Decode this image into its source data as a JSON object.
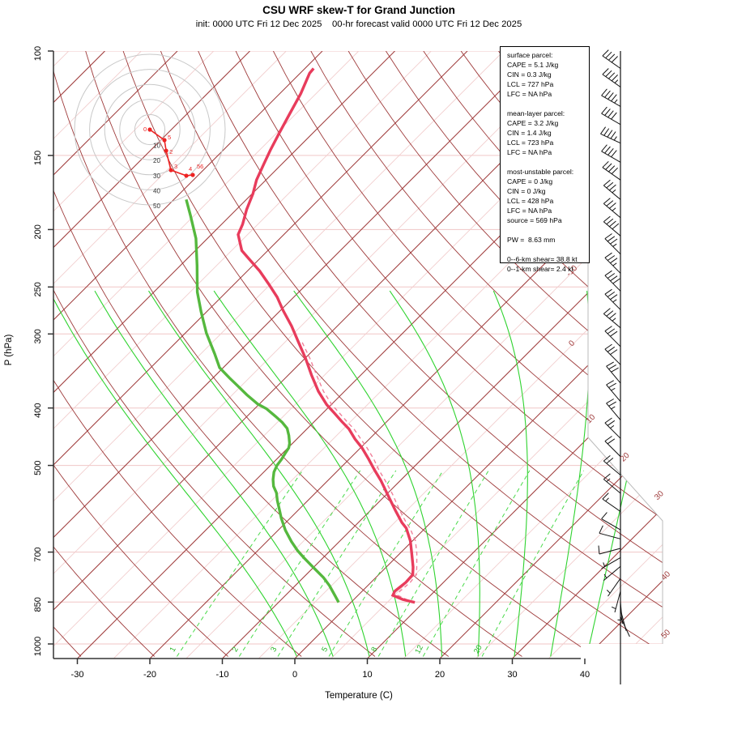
{
  "title": "CSU WRF skew-T for Grand Junction",
  "subtitle": "init: 0000 UTC Fri 12 Dec 2025    00-hr forecast valid 0000 UTC Fri 12 Dec 2025",
  "axes": {
    "xlabel": "Temperature (C)",
    "ylabel": "P (hPa)",
    "x_ticks": [
      -30,
      -20,
      -10,
      0,
      10,
      20,
      30,
      40
    ],
    "p_ticks": [
      100,
      150,
      200,
      250,
      300,
      400,
      500,
      700,
      850,
      1000
    ]
  },
  "info_box": {
    "lines": [
      "surface parcel:",
      "CAPE = 5.1 J/kg",
      "CIN = 0.3 J/kg",
      "LCL = 727 hPa",
      "LFC = NA hPa",
      "",
      "mean-layer parcel:",
      "CAPE = 3.2 J/kg",
      "CIN = 1.4 J/kg",
      "LCL = 723 hPa",
      "LFC = NA hPa",
      "",
      "most-unstable parcel:",
      "CAPE = 0 J/kg",
      "CIN = 0 J/kg",
      "LCL = 428 hPa",
      "LFC = NA hPa",
      "source = 569 hPa",
      "",
      "PW =  8.63 mm",
      "",
      "0--6-km shear= 38.8 kt",
      "0--1-km shear= 2.4 kt"
    ]
  },
  "chart_data": {
    "type": "line",
    "title": "CSU WRF skew-T for Grand Junction",
    "xlabel": "Temperature (C)",
    "ylabel": "P (hPa)",
    "x_range_C": [
      -30,
      45
    ],
    "p_range_hPa": [
      100,
      1050
    ],
    "grid": {
      "isobars_hPa": [
        100,
        150,
        200,
        250,
        300,
        400,
        500,
        700,
        850,
        1000
      ],
      "isotherms_C_major_step": 10,
      "isotherms_C_major": [
        -110,
        50
      ],
      "isotherms_C_minor_offset": 5,
      "isotherm_edge_labels_C": [
        -10,
        0,
        10,
        20,
        30,
        40,
        50
      ],
      "dry_adiabats_thetaK": [
        240,
        450,
        10
      ],
      "moist_adiabats_startC_at_1050": [
        0,
        5,
        10,
        15,
        20,
        25,
        30,
        35,
        40
      ],
      "moist_adiabat_top_hPa": 250,
      "mixing_ratio_g_per_kg": [
        1,
        2,
        3,
        5,
        8,
        12,
        20
      ],
      "mixing_ratio_top_hPa": 500
    },
    "temperature_profile_pT": [
      [
        107,
        -78.8
      ],
      [
        109,
        -78.7
      ],
      [
        118,
        -77.1
      ],
      [
        128,
        -75.8
      ],
      [
        137,
        -74.7
      ],
      [
        147,
        -73.5
      ],
      [
        155,
        -72.5
      ],
      [
        165,
        -71.3
      ],
      [
        174,
        -69.9
      ],
      [
        185,
        -68.6
      ],
      [
        196,
        -67.1
      ],
      [
        204,
        -66.3
      ],
      [
        217,
        -63.6
      ],
      [
        224,
        -61.5
      ],
      [
        235,
        -58.3
      ],
      [
        247,
        -55.3
      ],
      [
        260,
        -52.3
      ],
      [
        274,
        -49.6
      ],
      [
        291,
        -46.3
      ],
      [
        310,
        -43.1
      ],
      [
        330,
        -39.9
      ],
      [
        352,
        -36.8
      ],
      [
        375,
        -33.6
      ],
      [
        395,
        -30.6
      ],
      [
        408,
        -28.4
      ],
      [
        421,
        -26.3
      ],
      [
        434,
        -24.2
      ],
      [
        451,
        -22.0
      ],
      [
        467,
        -19.8
      ],
      [
        488,
        -17.3
      ],
      [
        509,
        -15.0
      ],
      [
        530,
        -12.7
      ],
      [
        559,
        -9.9
      ],
      [
        595,
        -6.6
      ],
      [
        624,
        -4.0
      ],
      [
        638,
        -2.6
      ],
      [
        670,
        -0.3
      ],
      [
        703,
        1.6
      ],
      [
        742,
        3.7
      ],
      [
        764,
        4.7
      ],
      [
        787,
        4.8
      ],
      [
        815,
        4.5
      ],
      [
        828,
        4.8
      ],
      [
        841,
        6.7
      ],
      [
        851,
        8.8
      ]
    ],
    "dewpoint_profile_pT": [
      [
        178,
        -78.3
      ],
      [
        189,
        -75.6
      ],
      [
        207,
        -71.6
      ],
      [
        230,
        -67.7
      ],
      [
        255,
        -64.0
      ],
      [
        275,
        -60.8
      ],
      [
        299,
        -57.1
      ],
      [
        324,
        -53.1
      ],
      [
        342,
        -50.5
      ],
      [
        356,
        -47.7
      ],
      [
        367,
        -45.5
      ],
      [
        380,
        -43.0
      ],
      [
        394,
        -40.2
      ],
      [
        401,
        -38.4
      ],
      [
        413,
        -36.1
      ],
      [
        423,
        -34.3
      ],
      [
        433,
        -32.8
      ],
      [
        445,
        -31.6
      ],
      [
        459,
        -30.4
      ],
      [
        467,
        -29.9
      ],
      [
        478,
        -29.6
      ],
      [
        489,
        -29.3
      ],
      [
        500,
        -29.1
      ],
      [
        513,
        -28.6
      ],
      [
        528,
        -27.7
      ],
      [
        542,
        -26.7
      ],
      [
        556,
        -25.4
      ],
      [
        573,
        -24.2
      ],
      [
        589,
        -23.0
      ],
      [
        614,
        -21.2
      ],
      [
        643,
        -19.0
      ],
      [
        672,
        -16.6
      ],
      [
        696,
        -14.5
      ],
      [
        716,
        -12.6
      ],
      [
        741,
        -10.2
      ],
      [
        773,
        -7.2
      ],
      [
        797,
        -5.3
      ],
      [
        828,
        -3.2
      ],
      [
        851,
        -1.7
      ]
    ],
    "parcel_trace_pT": [
      [
        851,
        8.8
      ],
      [
        841,
        7.2
      ],
      [
        828,
        5.5
      ],
      [
        815,
        5.2
      ],
      [
        787,
        5.4
      ],
      [
        764,
        5.2
      ],
      [
        742,
        4.2
      ],
      [
        703,
        2.3
      ],
      [
        670,
        0.4
      ],
      [
        638,
        -2.1
      ],
      [
        624,
        -3.4
      ],
      [
        595,
        -6.0
      ],
      [
        559,
        -9.2
      ],
      [
        530,
        -12.1
      ],
      [
        509,
        -14.4
      ],
      [
        488,
        -16.6
      ],
      [
        467,
        -19.1
      ],
      [
        451,
        -21.2
      ],
      [
        434,
        -23.5
      ],
      [
        421,
        -25.6
      ],
      [
        408,
        -27.7
      ],
      [
        395,
        -29.9
      ],
      [
        375,
        -32.9
      ],
      [
        352,
        -36.1
      ],
      [
        330,
        -39.3
      ],
      [
        310,
        -42.6
      ]
    ],
    "hodograph": {
      "ring_labels_kt": [
        10,
        20,
        30,
        40,
        50
      ],
      "trace_uv_kt": [
        [
          0,
          0
        ],
        [
          9.7,
          -7.0
        ],
        [
          10.8,
          -14.0
        ],
        [
          14.0,
          -26.9
        ],
        [
          24.2,
          -30.6
        ],
        [
          28.5,
          -30.1
        ]
      ],
      "point_labels": [
        "0",
        "5",
        "2",
        "3",
        "4",
        "56"
      ]
    },
    "wind_barbs_p_spd_dir": [
      [
        107,
        40,
        305
      ],
      [
        115,
        45,
        305
      ],
      [
        124,
        45,
        300
      ],
      [
        133,
        40,
        300
      ],
      [
        143,
        45,
        295
      ],
      [
        154,
        40,
        300
      ],
      [
        165,
        40,
        305
      ],
      [
        178,
        35,
        310
      ],
      [
        191,
        35,
        310
      ],
      [
        205,
        40,
        310
      ],
      [
        220,
        35,
        315
      ],
      [
        237,
        35,
        315
      ],
      [
        254,
        40,
        315
      ],
      [
        273,
        35,
        315
      ],
      [
        293,
        35,
        310
      ],
      [
        315,
        30,
        315
      ],
      [
        338,
        30,
        315
      ],
      [
        363,
        30,
        320
      ],
      [
        390,
        25,
        320
      ],
      [
        419,
        25,
        320
      ],
      [
        450,
        25,
        315
      ],
      [
        483,
        20,
        315
      ],
      [
        519,
        20,
        310
      ],
      [
        557,
        15,
        310
      ],
      [
        598,
        15,
        305
      ],
      [
        642,
        10,
        300
      ],
      [
        665,
        10,
        285
      ],
      [
        690,
        8,
        255
      ],
      [
        715,
        6,
        240
      ],
      [
        740,
        5,
        230
      ],
      [
        775,
        4,
        215
      ],
      [
        815,
        3,
        195
      ],
      [
        850,
        3,
        175
      ],
      [
        875,
        2,
        165
      ],
      [
        900,
        2,
        155
      ]
    ]
  },
  "colors": {
    "temperature": "#e83c5c",
    "dewpoint": "#55b83e",
    "parcel": "#f0809a",
    "isotherm": "#9e3a3a",
    "isotherm_minor": "#f2cece",
    "isobar": "#f0c6c6",
    "dry_adiabat": "#9e3a3a",
    "moist_adiabat": "#2fd32f",
    "mixing_ratio": "#4ada4a",
    "mixing_label": "#27b427",
    "boundary": "#bbbbbb",
    "hodo_ring": "#c8c8c8",
    "hodo_trace": "#ee2222",
    "barb": "#111111",
    "axis": "#333333"
  }
}
